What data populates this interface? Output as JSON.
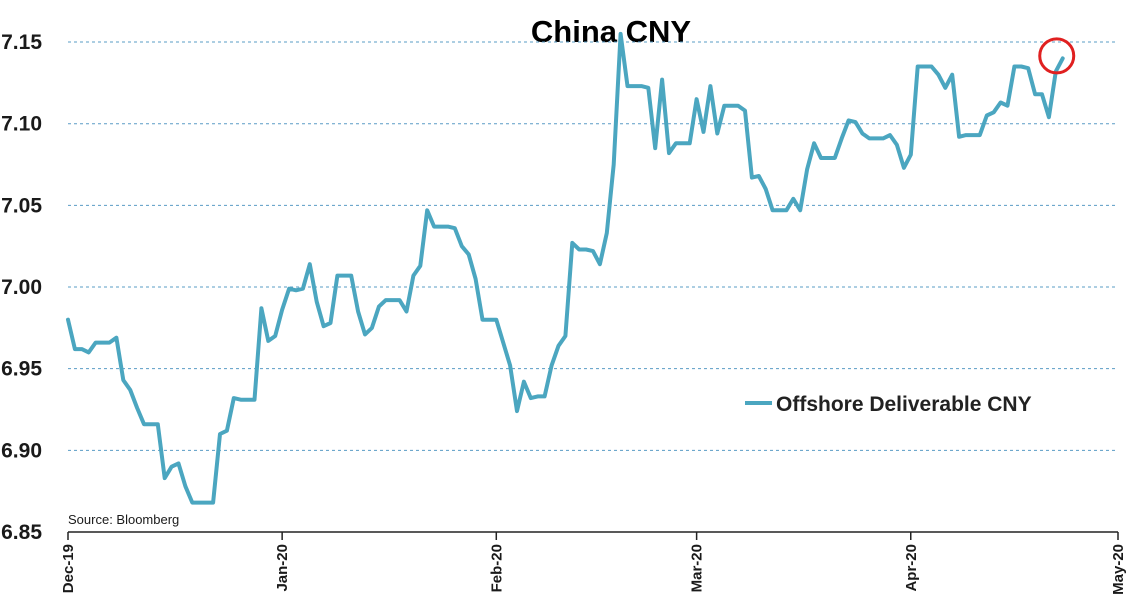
{
  "chart_data": {
    "type": "line",
    "title": "China CNY",
    "xlabel": "",
    "ylabel": "",
    "x_tick_labels": [
      "Dec-19",
      "Jan-20",
      "Feb-20",
      "Mar-20",
      "Apr-20",
      "May-20"
    ],
    "y_tick_labels": [
      "6.85",
      "6.90",
      "6.95",
      "7.00",
      "7.05",
      "7.10",
      "7.15"
    ],
    "ylim": [
      6.85,
      7.16
    ],
    "grid": "horizontal dashed",
    "legend_placement": "right",
    "source": "Source: Bloomberg",
    "series": [
      {
        "name": "Offshore Deliverable CNY",
        "color": "#4ba6c0",
        "x_start": "2019-12-01",
        "x_step_days": 1,
        "values": [
          6.98,
          6.962,
          6.962,
          6.96,
          6.966,
          6.966,
          6.966,
          6.969,
          6.943,
          6.937,
          6.926,
          6.916,
          6.916,
          6.916,
          6.883,
          6.89,
          6.892,
          6.878,
          6.868,
          6.868,
          6.868,
          6.868,
          6.91,
          6.912,
          6.932,
          6.931,
          6.931,
          6.931,
          6.987,
          6.967,
          6.97,
          6.986,
          6.999,
          6.998,
          6.999,
          7.014,
          6.991,
          6.976,
          6.978,
          7.007,
          7.007,
          7.007,
          6.985,
          6.971,
          6.975,
          6.988,
          6.992,
          6.992,
          6.992,
          6.985,
          7.007,
          7.013,
          7.047,
          7.037,
          7.037,
          7.037,
          7.036,
          7.025,
          7.02,
          7.005,
          6.98,
          6.98,
          6.98,
          6.966,
          6.952,
          6.924,
          6.942,
          6.932,
          6.933,
          6.933,
          6.952,
          6.964,
          6.97,
          7.027,
          7.023,
          7.023,
          7.022,
          7.014,
          7.033,
          7.075,
          7.155,
          7.123,
          7.123,
          7.123,
          7.122,
          7.085,
          7.127,
          7.082,
          7.088,
          7.088,
          7.088,
          7.115,
          7.095,
          7.123,
          7.094,
          7.111,
          7.111,
          7.111,
          7.108,
          7.067,
          7.068,
          7.06,
          7.047,
          7.047,
          7.047,
          7.054,
          7.047,
          7.072,
          7.088,
          7.079,
          7.079,
          7.079,
          7.091,
          7.102,
          7.101,
          7.094,
          7.091,
          7.091,
          7.091,
          7.093,
          7.087,
          7.073,
          7.081,
          7.135,
          7.135,
          7.135,
          7.13,
          7.122,
          7.13,
          7.092,
          7.093,
          7.093,
          7.093,
          7.105,
          7.107,
          7.113,
          7.111,
          7.135,
          7.135,
          7.134,
          7.118,
          7.118,
          7.104,
          7.132,
          7.14
        ]
      }
    ],
    "annotations": [
      {
        "type": "circle",
        "color": "#e02020",
        "target": "last point"
      }
    ]
  }
}
